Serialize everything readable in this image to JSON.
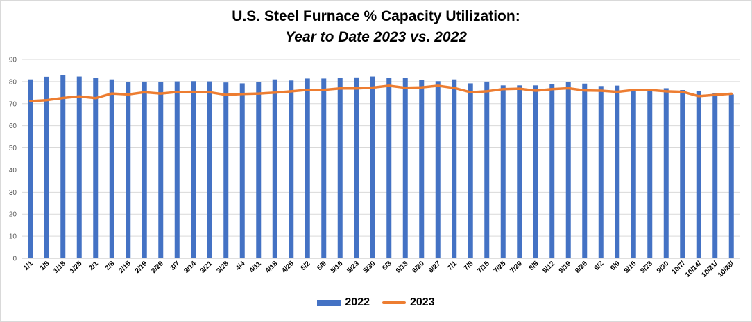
{
  "chart_data": {
    "type": "bar",
    "title": "U.S. Steel Furnace % Capacity Utilization:",
    "subtitle": "Year to Date 2023 vs. 2022",
    "xlabel": "",
    "ylabel": "",
    "ylim": [
      0,
      90
    ],
    "yticks": [
      0,
      10,
      20,
      30,
      40,
      50,
      60,
      70,
      80,
      90
    ],
    "grid": true,
    "legend_position": "bottom",
    "categories": [
      "1/1",
      "1/8",
      "1/18",
      "1/25",
      "2/1",
      "2/8",
      "2/15",
      "2/19",
      "2/29",
      "3/7",
      "3/14",
      "3/21",
      "3/28",
      "4/4",
      "4/11",
      "4/18",
      "4/25",
      "5/2",
      "5/9",
      "5/16",
      "5/23",
      "5/30",
      "6/3",
      "6/13",
      "6/20",
      "6/27",
      "7/1",
      "7/8",
      "7/15",
      "7/25",
      "7/29",
      "8/5",
      "8/12",
      "8/19",
      "8/26",
      "9/2",
      "9/9",
      "9/16",
      "9/23",
      "9/30",
      "10/7/",
      "10/14/",
      "10/21/",
      "10/28/"
    ],
    "series": [
      {
        "name": "2022",
        "kind": "bar",
        "color": "#4472c4",
        "values": [
          81.0,
          82.2,
          83.1,
          82.3,
          81.6,
          81.0,
          79.9,
          80.0,
          79.9,
          80.1,
          80.2,
          80.1,
          79.6,
          79.2,
          79.8,
          81.0,
          80.5,
          81.4,
          81.4,
          81.6,
          81.9,
          82.3,
          81.8,
          81.6,
          80.6,
          80.2,
          81.0,
          79.2,
          80.0,
          78.3,
          78.3,
          78.3,
          79.0,
          79.8,
          79.1,
          78.0,
          78.2,
          76.4,
          76.6,
          77.0,
          76.2,
          75.8,
          74.8,
          74.2
        ]
      },
      {
        "name": "2023",
        "kind": "line",
        "color": "#ed7d31",
        "values": [
          71.2,
          71.6,
          72.6,
          73.3,
          72.5,
          74.6,
          74.2,
          75.2,
          74.6,
          75.3,
          75.4,
          75.2,
          74.0,
          74.4,
          74.6,
          75.0,
          75.6,
          76.3,
          76.3,
          76.9,
          76.9,
          77.3,
          78.1,
          77.2,
          77.4,
          78.1,
          77.1,
          75.2,
          75.6,
          76.6,
          76.8,
          75.9,
          76.6,
          77.0,
          76.0,
          75.9,
          75.4,
          76.2,
          76.2,
          75.6,
          75.4,
          73.4,
          74.0,
          74.5
        ]
      }
    ]
  }
}
